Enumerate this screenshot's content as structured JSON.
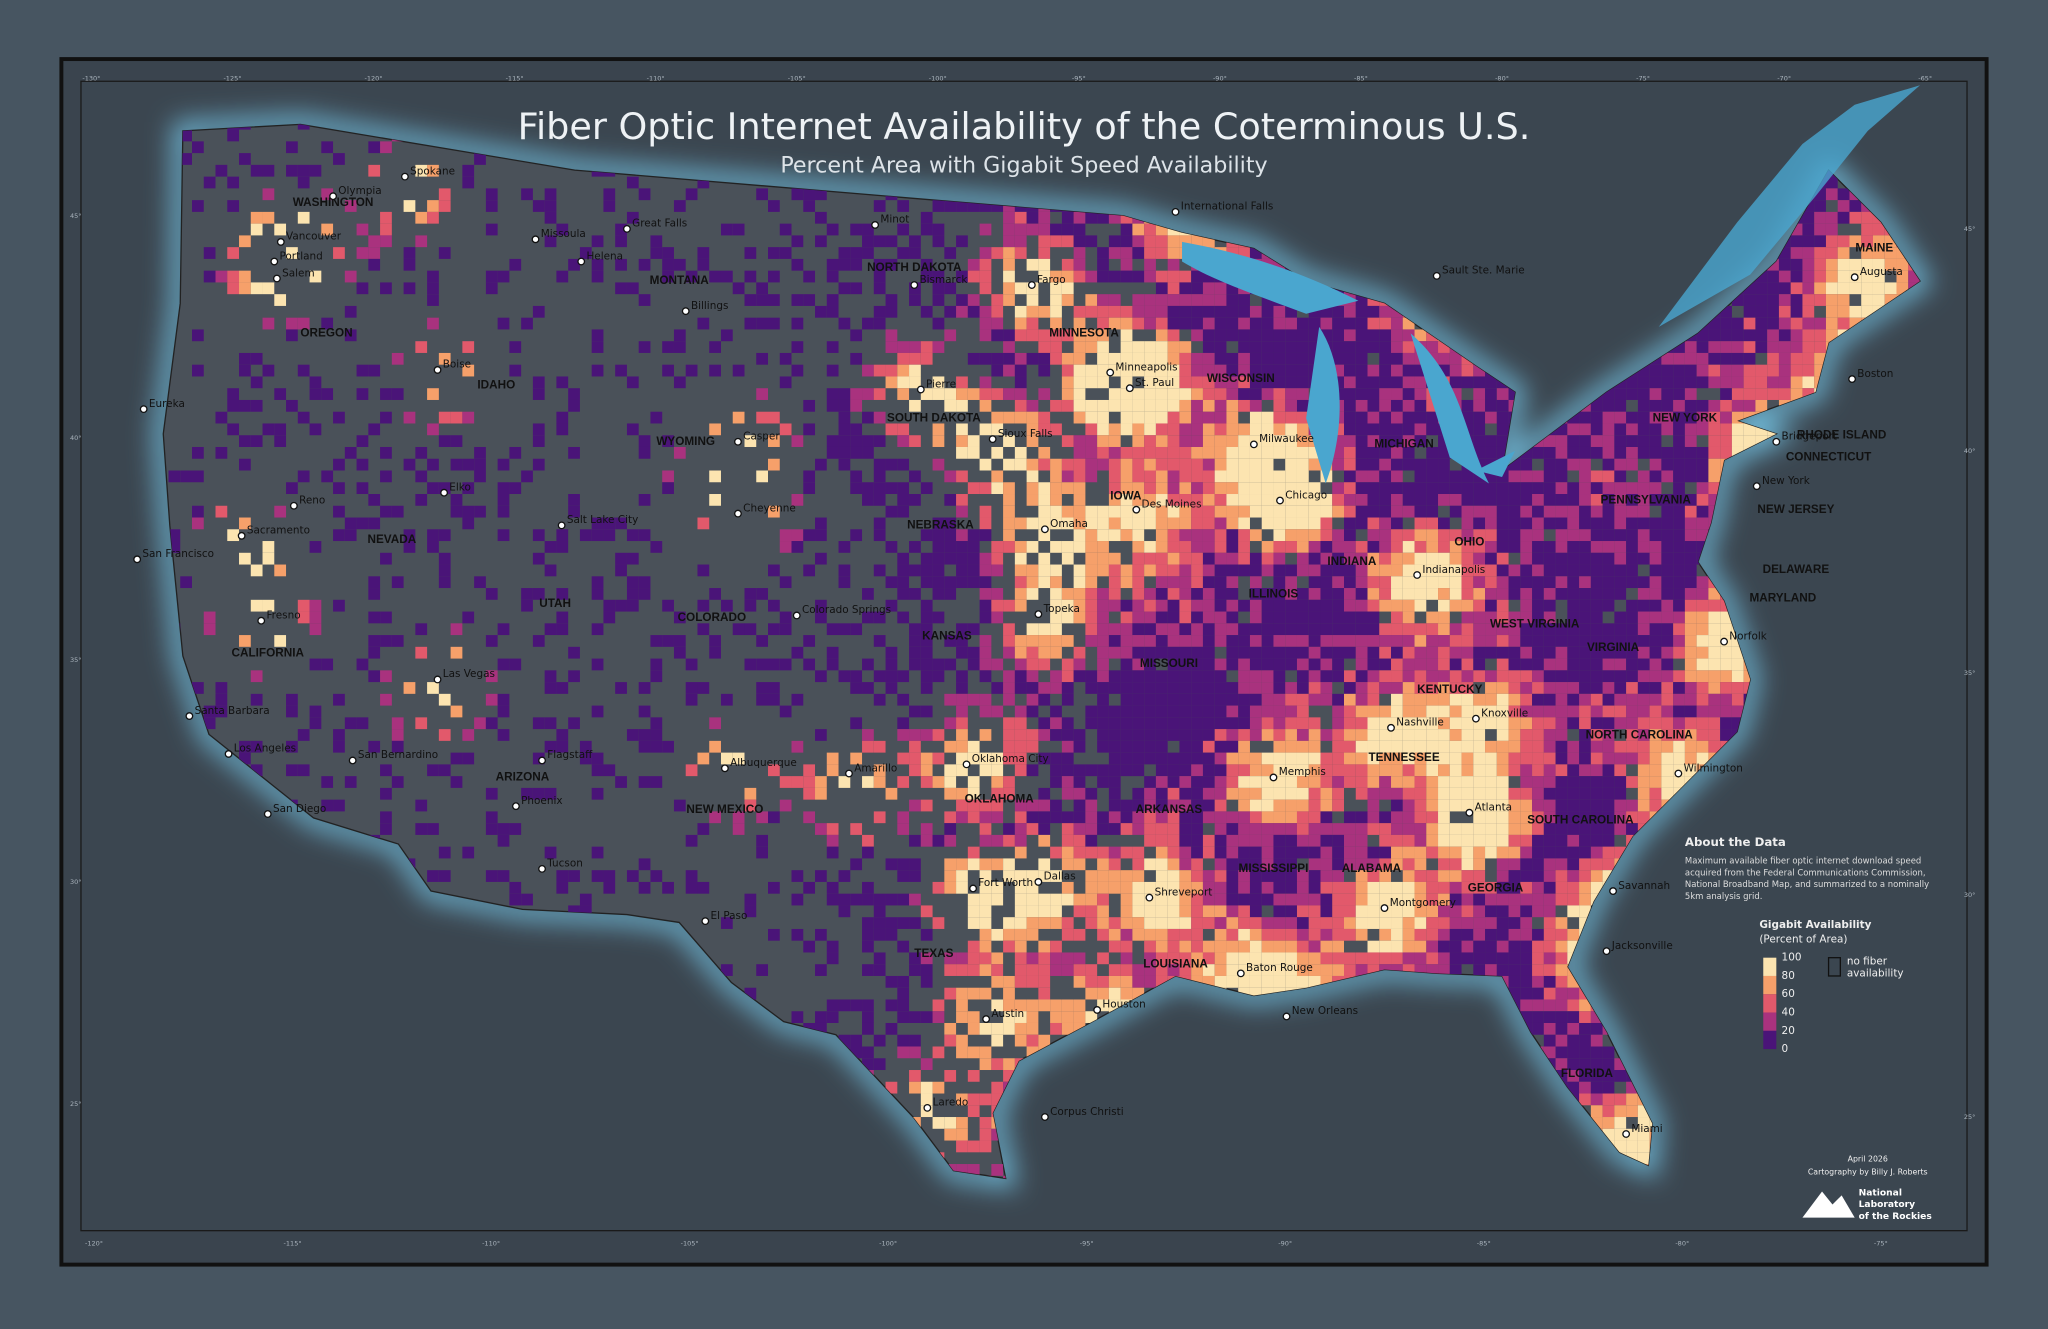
{
  "title": "Fiber Optic Internet Availability of the Coterminous U.S.",
  "subtitle": "Percent Area with Gigabit Speed Availability",
  "legend": {
    "title": "Gigabit Availability",
    "subtitle": "(Percent of Area)",
    "ticks": [
      100,
      80,
      60,
      40,
      20,
      0
    ],
    "colors": [
      "#fce4b0",
      "#f6a06a",
      "#e2596b",
      "#a9327e",
      "#4a1478"
    ],
    "no_fiber": [
      "no fiber",
      "availability"
    ]
  },
  "about": {
    "title": "About the Data",
    "lines": [
      "Maximum available fiber optic internet download speed",
      "acquired from the Federal Communications Commission,",
      "National Broadband Map, and summarized to a nominally",
      "5km analysis grid."
    ]
  },
  "credits": {
    "date": "April 2026",
    "author": "Cartography by Billy J. Roberts",
    "org": [
      "National",
      "Laboratory",
      "of the Rockies"
    ]
  },
  "graticule": {
    "top": [
      "-130°",
      "-125°",
      "-120°",
      "-115°",
      "-110°",
      "-105°",
      "-100°",
      "-95°",
      "-90°",
      "-85°",
      "-80°",
      "-75°",
      "-70°",
      "-65°"
    ],
    "bottom": [
      "-120°",
      "-115°",
      "-110°",
      "-105°",
      "-100°",
      "-95°",
      "-90°",
      "-85°",
      "-80°",
      "-75°"
    ],
    "left": [
      "45°",
      "40°",
      "35°",
      "30°",
      "25°"
    ],
    "right": [
      "45°",
      "40°",
      "35°",
      "30°",
      "25°"
    ]
  },
  "cities": [
    "Spokane",
    "Olympia",
    "Vancouver",
    "Portland",
    "Salem",
    "Eureka",
    "Boise",
    "Missoula",
    "Helena",
    "Great Falls",
    "Billings",
    "Minot",
    "Bismarck",
    "Fargo",
    "Pierre",
    "Sioux Falls",
    "Casper",
    "Cheyenne",
    "Elko",
    "Reno",
    "Sacramento",
    "San Francisco",
    "Fresno",
    "Salt Lake City",
    "Colorado Springs",
    "Las Vegas",
    "Santa Barbara",
    "Los Angeles",
    "San Bernardino",
    "San Diego",
    "Flagstaff",
    "Phoenix",
    "Tucson",
    "Albuquerque",
    "Amarillo",
    "El Paso",
    "Oklahoma City",
    "Dallas",
    "Fort Worth",
    "Austin",
    "Houston",
    "Corpus Christi",
    "Laredo",
    "Shreveport",
    "Baton Rouge",
    "New Orleans",
    "Memphis",
    "Nashville",
    "Knoxville",
    "Atlanta",
    "Montgomery",
    "Savannah",
    "Jacksonville",
    "Miami",
    "Wilmington",
    "Norfolk",
    "Minneapolis",
    "St. Paul",
    "Milwaukee",
    "Chicago",
    "Des Moines",
    "Omaha",
    "Topeka",
    "Indianapolis",
    "New York",
    "Bridgeport",
    "Boston",
    "Augusta",
    "Sault Ste. Marie",
    "International Falls"
  ],
  "states": [
    "WASHINGTON",
    "OREGON",
    "IDAHO",
    "MONTANA",
    "WYOMING",
    "NEVADA",
    "UTAH",
    "COLORADO",
    "CALIFORNIA",
    "ARIZONA",
    "NEW MEXICO",
    "NORTH DAKOTA",
    "SOUTH DAKOTA",
    "NEBRASKA",
    "KANSAS",
    "OKLAHOMA",
    "TEXAS",
    "MINNESOTA",
    "IOWA",
    "MISSOURI",
    "ARKANSAS",
    "LOUISIANA",
    "WISCONSIN",
    "ILLINOIS",
    "MICHIGAN",
    "INDIANA",
    "OHIO",
    "KENTUCKY",
    "TENNESSEE",
    "MISSISSIPPI",
    "ALABAMA",
    "GEORGIA",
    "FLORIDA",
    "SOUTH CAROLINA",
    "NORTH CAROLINA",
    "VIRGINIA",
    "WEST VIRGINIA",
    "PENNSYLVANIA",
    "NEW YORK",
    "NEW JERSEY",
    "DELAWARE",
    "MARYLAND",
    "CONNECTICUT",
    "RHODE ISLAND",
    "MAINE"
  ]
}
